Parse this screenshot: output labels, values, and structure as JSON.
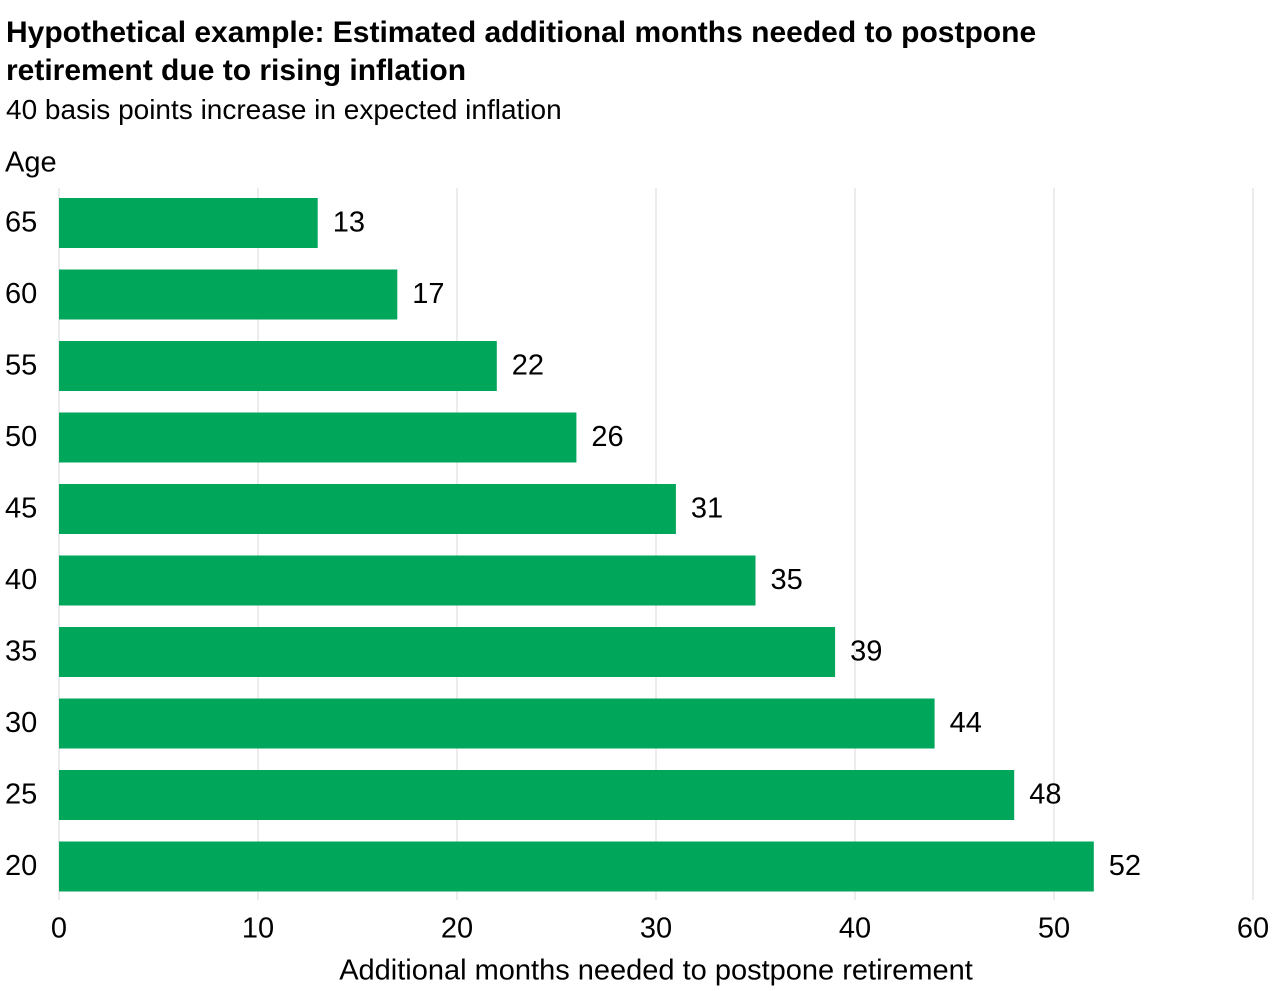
{
  "chart_data": {
    "type": "barh",
    "title": "Hypothetical example: Estimated additional months needed to postpone retirement due to rising inflation",
    "subtitle": "40 basis points increase in expected inflation",
    "y_label": "Age",
    "x_label": "Additional months needed to postpone retirement",
    "categories": [
      "65",
      "60",
      "55",
      "50",
      "45",
      "40",
      "35",
      "30",
      "25",
      "20"
    ],
    "values": [
      13,
      17,
      22,
      26,
      31,
      35,
      39,
      44,
      48,
      52
    ],
    "color": "#00a65a",
    "xlim": [
      0,
      60
    ],
    "xticks": [
      0,
      10,
      20,
      30,
      40,
      50,
      60
    ],
    "grid": true
  }
}
